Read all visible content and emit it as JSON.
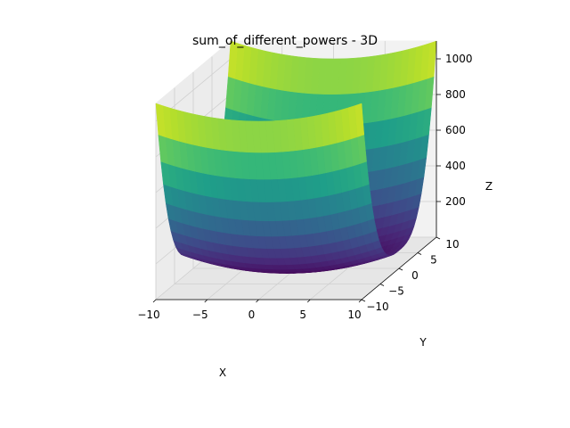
{
  "chart_data": {
    "type": "surface3d",
    "title": "sum_of_different_powers - 3D",
    "xlabel": "X",
    "ylabel": "Y",
    "zlabel": "Z",
    "xlim": [
      -10,
      10
    ],
    "ylim": [
      -10,
      10
    ],
    "zlim": [
      0,
      1100
    ],
    "xticks": [
      -10,
      -5,
      0,
      5,
      10
    ],
    "yticks": [
      -10,
      -5,
      0,
      5,
      10
    ],
    "zticks": [
      200,
      400,
      600,
      800,
      1000
    ],
    "xtick_labels": [
      "−10",
      "−5",
      "0",
      "5",
      "10"
    ],
    "ytick_labels": [
      "−10",
      "−5",
      "0",
      "5",
      "10"
    ],
    "ztick_labels": [
      "200",
      "400",
      "600",
      "800",
      "1000"
    ],
    "function": "z = |x|^2 + |y|^3",
    "colormap": "viridis",
    "grid": true,
    "z_samples": [
      {
        "x": 0,
        "y": 0,
        "z": 0
      },
      {
        "x": -10,
        "y": 0,
        "z": 100
      },
      {
        "x": 10,
        "y": 0,
        "z": 100
      },
      {
        "x": 0,
        "y": -10,
        "z": 1000
      },
      {
        "x": 0,
        "y": 10,
        "z": 1000
      },
      {
        "x": -10,
        "y": -10,
        "z": 1100
      },
      {
        "x": 10,
        "y": -10,
        "z": 1100
      },
      {
        "x": -10,
        "y": 10,
        "z": 1100
      },
      {
        "x": 10,
        "y": 10,
        "z": 1100
      }
    ]
  }
}
